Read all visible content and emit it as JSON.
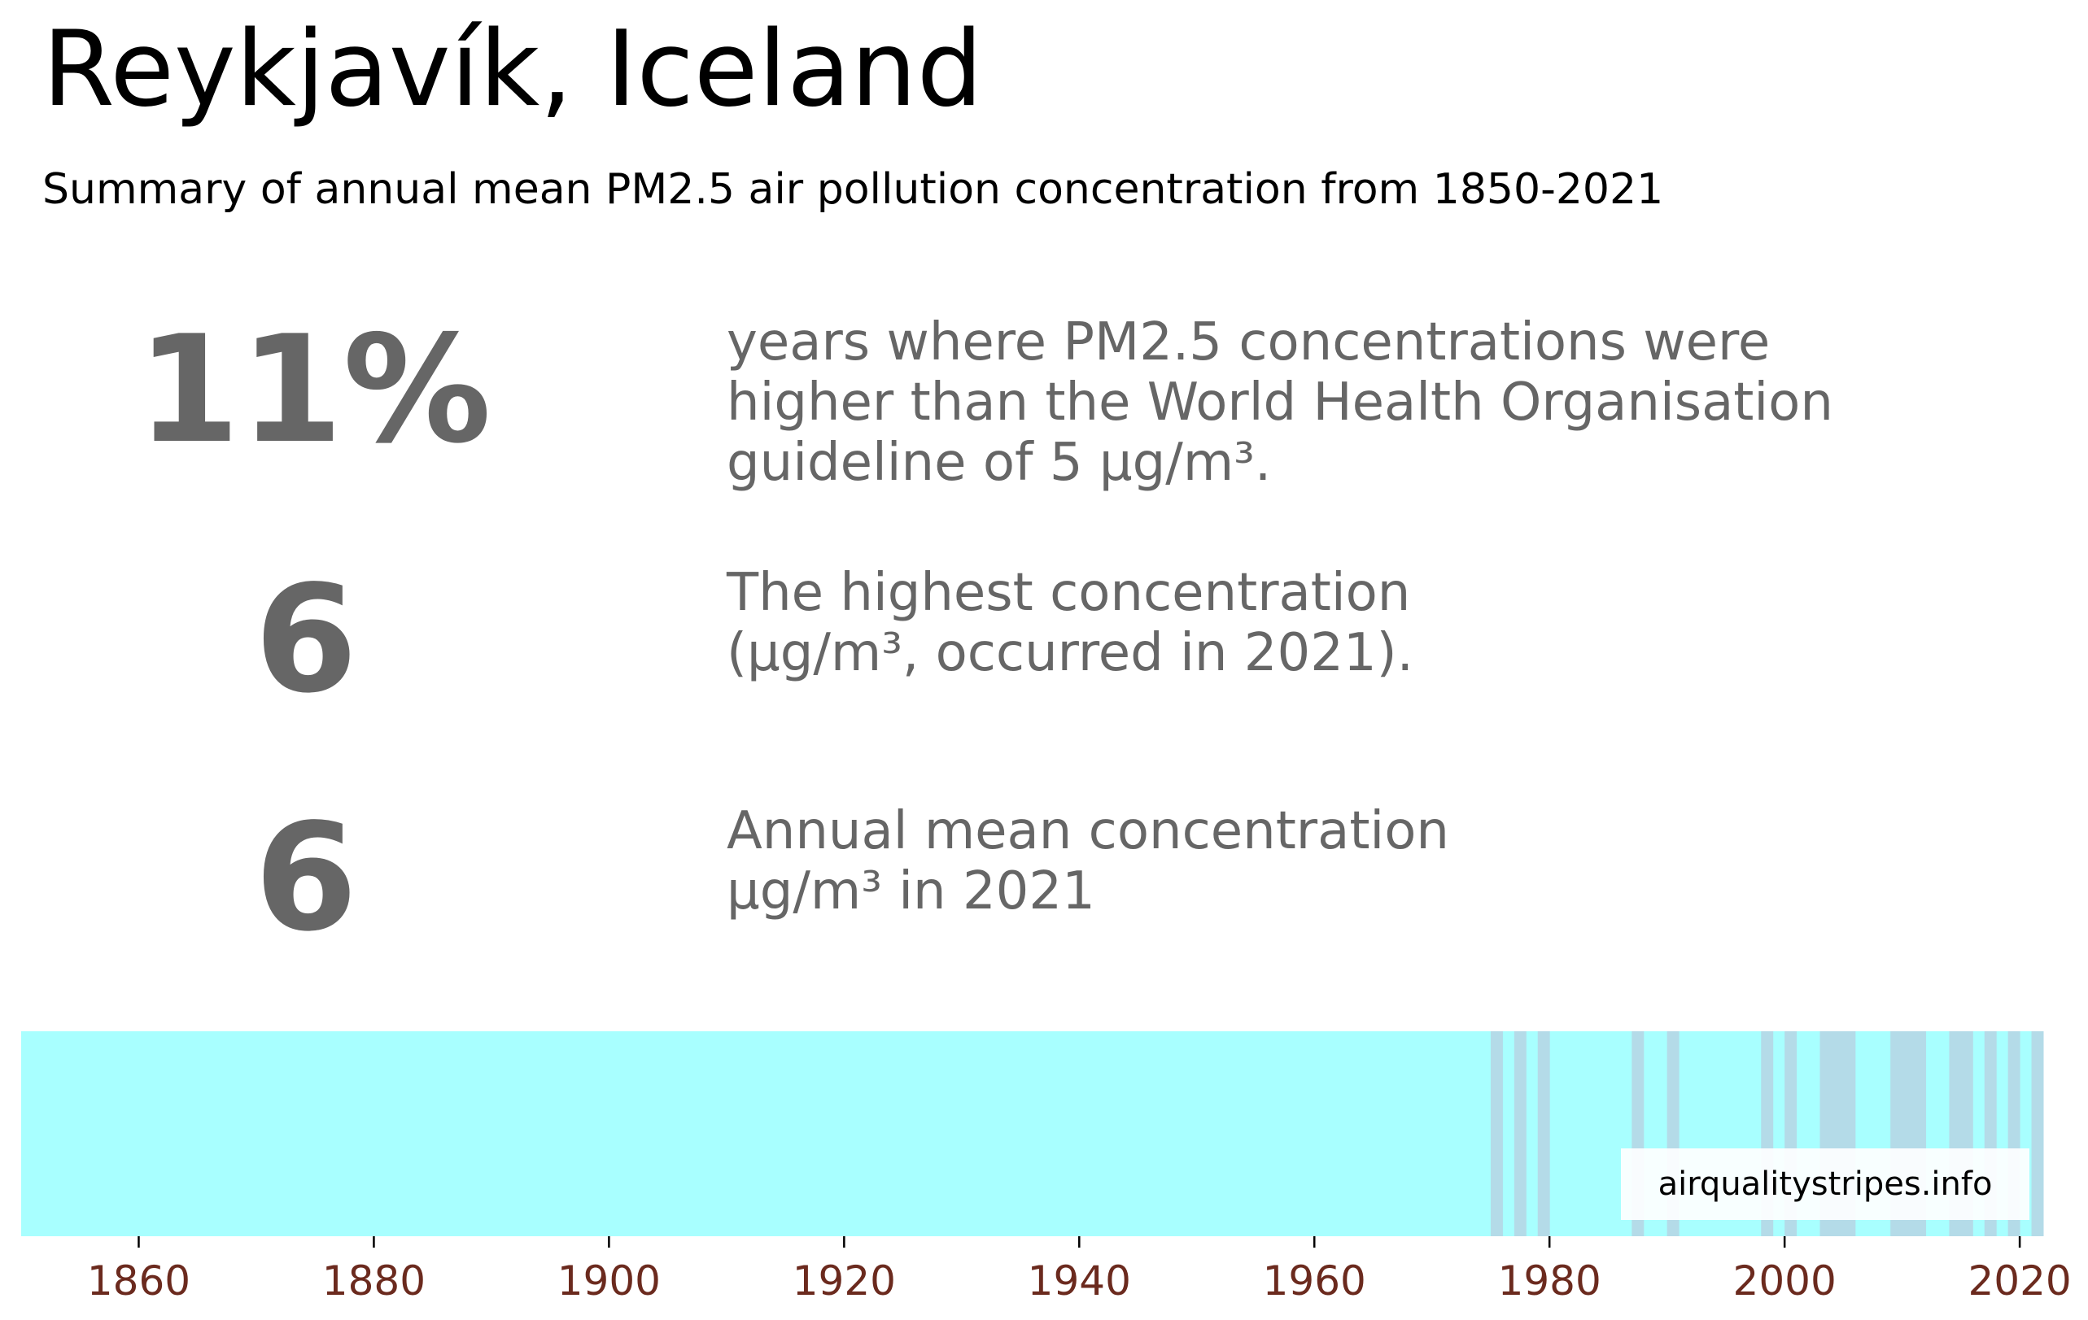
{
  "header": {
    "title": "Reykjavík, Iceland",
    "subtitle": "Summary of annual mean PM2.5 air pollution concentration from 1850-2021"
  },
  "stats": [
    {
      "value": "11%",
      "description": "years where PM2.5 concentrations were\nhigher than the World Health Organisation\nguideline of 5 µg/m³."
    },
    {
      "value": "6",
      "description": "The highest concentration\n(µg/m³, occurred in 2021)."
    },
    {
      "value": "6",
      "description": "Annual mean concentration\nµg/m³ in 2021"
    }
  ],
  "credit": "airqualitystripes.info",
  "colors": {
    "below_guideline": "#a8ffff",
    "above_guideline": "#b4dbe8",
    "stat_text": "#666666",
    "tick_label": "#6b2a1e"
  },
  "chart_data": {
    "type": "heatmap",
    "x": {
      "start": 1850,
      "end": 2021,
      "ticks": [
        1860,
        1880,
        1900,
        1920,
        1940,
        1960,
        1980,
        2000,
        2020
      ]
    },
    "guideline": 5,
    "base_years_value": "below guideline",
    "above_guideline_years": [
      1975,
      1977,
      1979,
      1987,
      1990,
      1998,
      2000,
      2003,
      2004,
      2005,
      2009,
      2010,
      2011,
      2014,
      2015,
      2017,
      2019,
      2021
    ]
  }
}
